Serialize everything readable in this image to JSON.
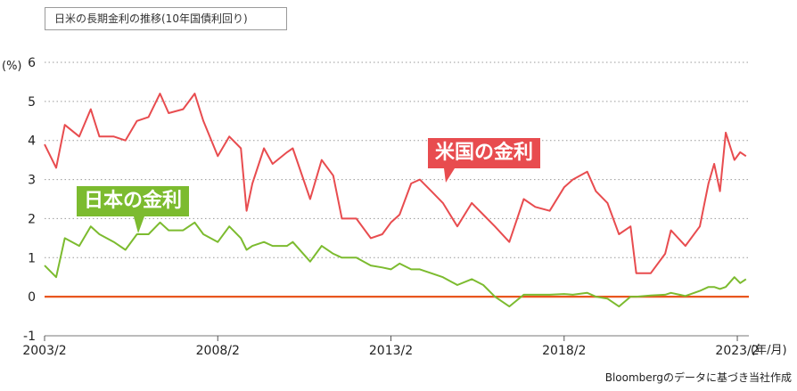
{
  "title": "日米の長期金利の推移(10年国債利回り)",
  "source": "Bloombergのデータに基づき当社作成",
  "colors": {
    "us": "#e84c4f",
    "jp": "#7cbb2f",
    "zero": "#e8561e",
    "grid": "#9a9a9a"
  },
  "chart_data": {
    "type": "line",
    "title": "日米の長期金利の推移(10年国債利回り)",
    "ylabel": "(%)",
    "xlabel": "(年/月)",
    "ylim": [
      -1,
      6
    ],
    "yticks": [
      "-1",
      "0",
      "1",
      "2",
      "3",
      "4",
      "5",
      "6"
    ],
    "xlim": [
      "2003/2",
      "2023/6"
    ],
    "xticks": [
      "2003/2",
      "2008/2",
      "2013/2",
      "2018/2",
      "2023/2"
    ],
    "grid": "horizontal dotted",
    "series": [
      {
        "name": "米国の金利",
        "x": [
          "2003/2",
          "2003/6",
          "2003/9",
          "2004/2",
          "2004/6",
          "2004/9",
          "2005/2",
          "2005/6",
          "2005/10",
          "2006/2",
          "2006/6",
          "2006/9",
          "2007/2",
          "2007/6",
          "2007/9",
          "2008/2",
          "2008/6",
          "2008/10",
          "2008/12",
          "2009/2",
          "2009/6",
          "2009/9",
          "2010/2",
          "2010/4",
          "2010/10",
          "2011/2",
          "2011/6",
          "2011/9",
          "2012/2",
          "2012/7",
          "2012/11",
          "2013/2",
          "2013/5",
          "2013/9",
          "2013/12",
          "2014/4",
          "2014/8",
          "2015/1",
          "2015/6",
          "2015/10",
          "2016/2",
          "2016/7",
          "2016/12",
          "2017/4",
          "2017/9",
          "2018/2",
          "2018/5",
          "2018/10",
          "2019/1",
          "2019/5",
          "2019/9",
          "2020/1",
          "2020/3",
          "2020/8",
          "2021/1",
          "2021/3",
          "2021/8",
          "2022/1",
          "2022/4",
          "2022/6",
          "2022/8",
          "2022/10",
          "2023/1",
          "2023/3",
          "2023/5"
        ],
        "values": [
          3.9,
          3.3,
          4.4,
          4.1,
          4.8,
          4.1,
          4.1,
          4.0,
          4.5,
          4.6,
          5.2,
          4.7,
          4.8,
          5.2,
          4.5,
          3.6,
          4.1,
          3.8,
          2.2,
          2.9,
          3.8,
          3.4,
          3.7,
          3.8,
          2.5,
          3.5,
          3.1,
          2.0,
          2.0,
          1.5,
          1.6,
          1.9,
          2.1,
          2.9,
          3.0,
          2.7,
          2.4,
          1.8,
          2.4,
          2.1,
          1.8,
          1.4,
          2.5,
          2.3,
          2.2,
          2.8,
          3.0,
          3.2,
          2.7,
          2.4,
          1.6,
          1.8,
          0.6,
          0.6,
          1.1,
          1.7,
          1.3,
          1.8,
          2.9,
          3.4,
          2.7,
          4.2,
          3.5,
          3.7,
          3.6
        ]
      },
      {
        "name": "日本の金利",
        "x": [
          "2003/2",
          "2003/6",
          "2003/9",
          "2004/2",
          "2004/6",
          "2004/9",
          "2005/2",
          "2005/6",
          "2005/10",
          "2006/2",
          "2006/6",
          "2006/9",
          "2007/2",
          "2007/6",
          "2007/9",
          "2008/2",
          "2008/6",
          "2008/10",
          "2008/12",
          "2009/2",
          "2009/6",
          "2009/9",
          "2010/2",
          "2010/4",
          "2010/10",
          "2011/2",
          "2011/6",
          "2011/9",
          "2012/2",
          "2012/7",
          "2012/11",
          "2013/2",
          "2013/5",
          "2013/9",
          "2013/12",
          "2014/4",
          "2014/8",
          "2015/1",
          "2015/6",
          "2015/10",
          "2016/2",
          "2016/7",
          "2016/12",
          "2017/4",
          "2017/9",
          "2018/2",
          "2018/5",
          "2018/10",
          "2019/1",
          "2019/5",
          "2019/9",
          "2020/1",
          "2020/3",
          "2020/8",
          "2021/1",
          "2021/3",
          "2021/8",
          "2022/1",
          "2022/4",
          "2022/6",
          "2022/8",
          "2022/10",
          "2023/1",
          "2023/3",
          "2023/5"
        ],
        "values": [
          0.8,
          0.5,
          1.5,
          1.3,
          1.8,
          1.6,
          1.4,
          1.2,
          1.6,
          1.6,
          1.9,
          1.7,
          1.7,
          1.9,
          1.6,
          1.4,
          1.8,
          1.5,
          1.2,
          1.3,
          1.4,
          1.3,
          1.3,
          1.4,
          0.9,
          1.3,
          1.1,
          1.0,
          1.0,
          0.8,
          0.75,
          0.7,
          0.85,
          0.7,
          0.7,
          0.6,
          0.5,
          0.3,
          0.45,
          0.3,
          0.0,
          -0.25,
          0.05,
          0.05,
          0.05,
          0.07,
          0.05,
          0.1,
          0.0,
          -0.05,
          -0.25,
          0.0,
          0.0,
          0.03,
          0.05,
          0.1,
          0.02,
          0.15,
          0.25,
          0.25,
          0.2,
          0.25,
          0.5,
          0.35,
          0.45
        ]
      }
    ],
    "annotations": [
      "米国の金利",
      "日本の金利"
    ],
    "legend": "inline labels"
  }
}
